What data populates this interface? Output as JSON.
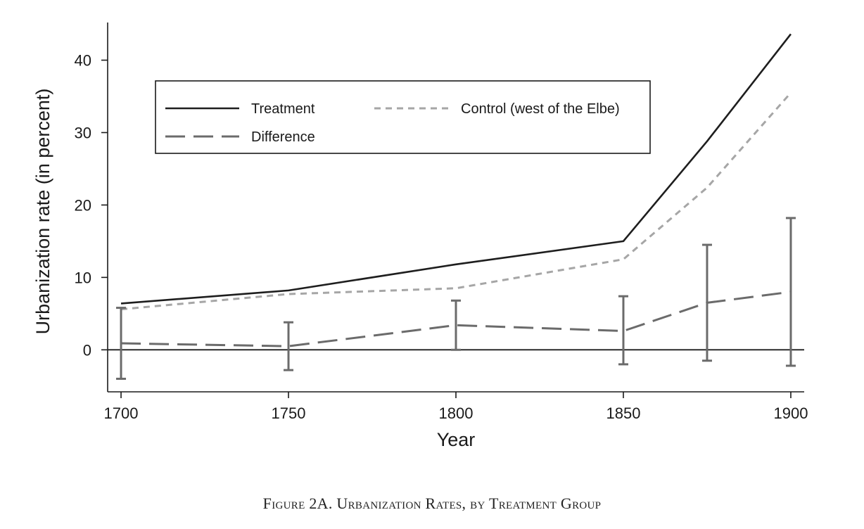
{
  "chart_data": {
    "type": "line",
    "xlabel": "Year",
    "ylabel": "Urbanization rate (in percent)",
    "x_ticks": [
      "1700",
      "1750",
      "1800",
      "1850",
      "1900"
    ],
    "y_ticks": [
      "0",
      "10",
      "20",
      "30",
      "40"
    ],
    "xlim": [
      1696,
      1904
    ],
    "ylim": [
      -5.8,
      45.2
    ],
    "grid": false,
    "reference_line_y": 0,
    "legend": {
      "placement": "top-left",
      "entries": [
        "Treatment",
        "Control (west of the Elbe)",
        "Difference"
      ]
    },
    "series": [
      {
        "name": "Treatment",
        "style": "solid",
        "color": "#1e1e1e",
        "points": [
          {
            "x": 1700,
            "y": 6.4
          },
          {
            "x": 1750,
            "y": 8.2
          },
          {
            "x": 1800,
            "y": 11.8
          },
          {
            "x": 1850,
            "y": 15.0
          },
          {
            "x": 1875,
            "y": 28.8
          },
          {
            "x": 1900,
            "y": 43.6
          }
        ]
      },
      {
        "name": "Control (west of the Elbe)",
        "style": "short-dash",
        "color": "#a6a6a6",
        "points": [
          {
            "x": 1700,
            "y": 5.6
          },
          {
            "x": 1750,
            "y": 7.7
          },
          {
            "x": 1800,
            "y": 8.5
          },
          {
            "x": 1850,
            "y": 12.5
          },
          {
            "x": 1875,
            "y": 22.4
          },
          {
            "x": 1900,
            "y": 35.5
          }
        ]
      },
      {
        "name": "Difference",
        "style": "long-dash",
        "color": "#6b6b6b",
        "points": [
          {
            "x": 1700,
            "y": 0.9,
            "ci_low": -4.0,
            "ci_high": 5.8
          },
          {
            "x": 1750,
            "y": 0.5,
            "ci_low": -2.8,
            "ci_high": 3.8
          },
          {
            "x": 1800,
            "y": 3.4,
            "ci_low": 0.0,
            "ci_high": 6.8
          },
          {
            "x": 1850,
            "y": 2.6,
            "ci_low": -2.0,
            "ci_high": 7.4
          },
          {
            "x": 1875,
            "y": 6.5,
            "ci_low": -1.5,
            "ci_high": 14.5
          },
          {
            "x": 1900,
            "y": 8.0,
            "ci_low": -2.2,
            "ci_high": 18.2
          }
        ]
      }
    ]
  },
  "caption": "Figure 2A. Urbanization Rates, by Treatment Group"
}
